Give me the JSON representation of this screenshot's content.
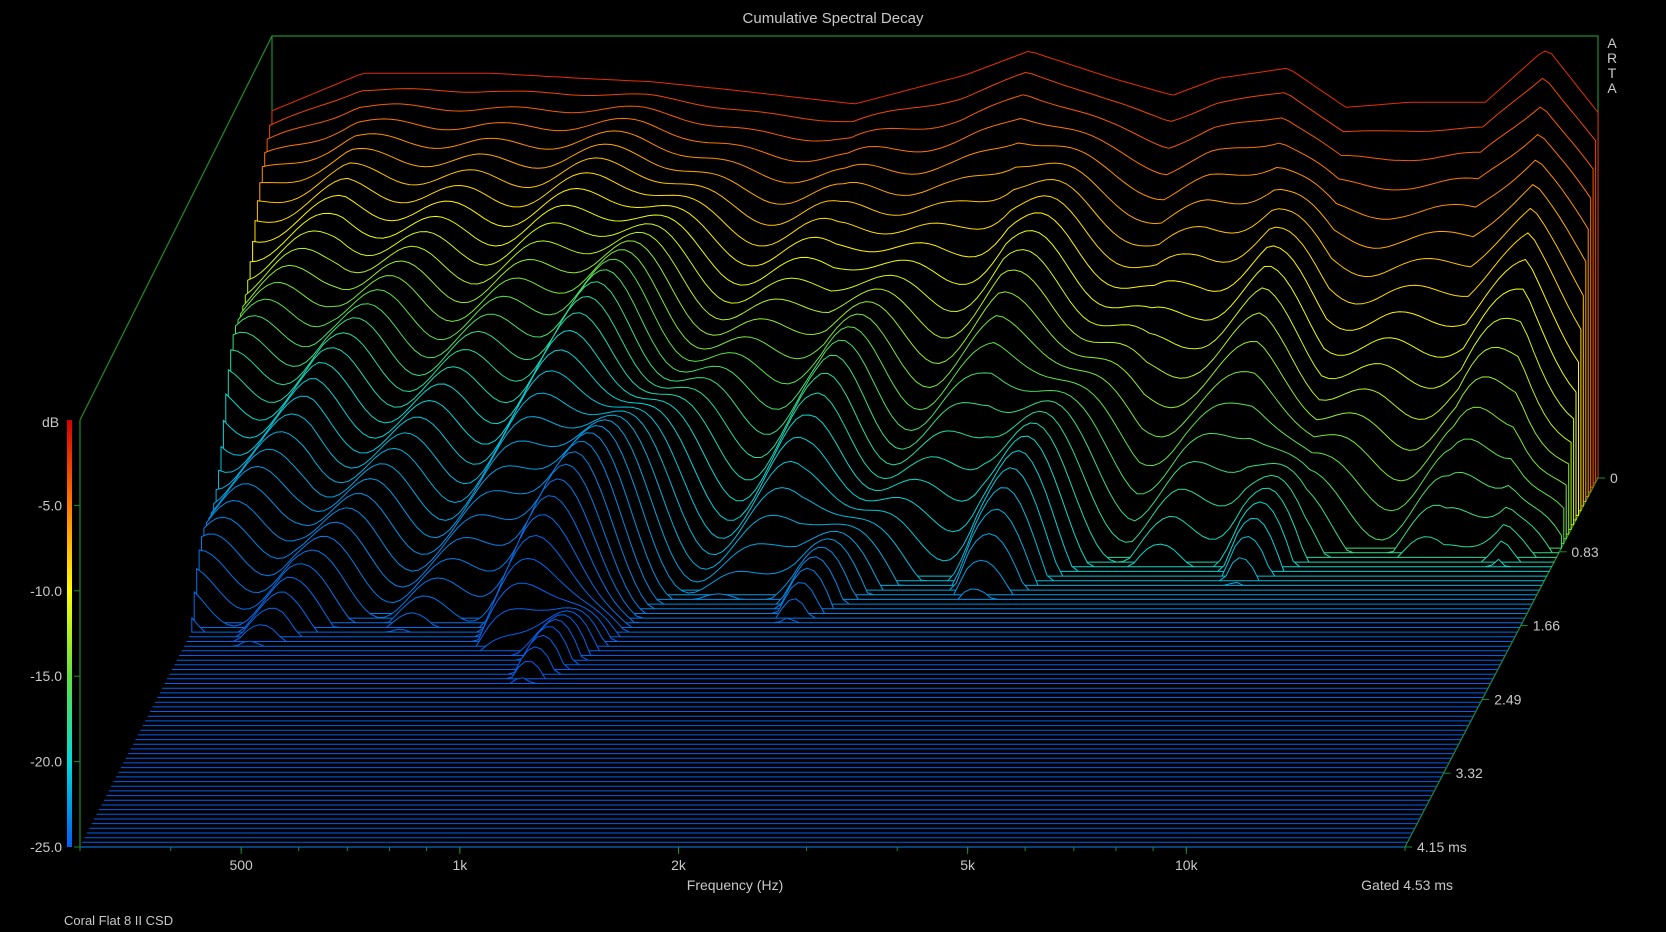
{
  "chart_data": {
    "type": "waterfall",
    "title": "Cumulative Spectral Decay",
    "xlabel": "Frequency (Hz)",
    "zlabel": "dB",
    "brand": "A R T A",
    "footer_left": "Coral Flat 8 II CSD",
    "footer_right": "Gated 4.53 ms",
    "x_ticks": [
      {
        "value": 500,
        "label": "500"
      },
      {
        "value": 1000,
        "label": "1k"
      },
      {
        "value": 2000,
        "label": "2k"
      },
      {
        "value": 5000,
        "label": "5k"
      },
      {
        "value": 10000,
        "label": "10k"
      }
    ],
    "x_range_hz": [
      300,
      20000
    ],
    "z_ticks": [
      {
        "value": -5,
        "label": "-5.0"
      },
      {
        "value": -10,
        "label": "-10.0"
      },
      {
        "value": -15,
        "label": "-15.0"
      },
      {
        "value": -20,
        "label": "-20.0"
      },
      {
        "value": -25,
        "label": "-25.0"
      }
    ],
    "z_range_db": [
      -25,
      0
    ],
    "time_ticks": [
      {
        "value": 0,
        "label": "0"
      },
      {
        "value": 0.83,
        "label": "0.83"
      },
      {
        "value": 1.66,
        "label": "1.66"
      },
      {
        "value": 2.49,
        "label": "2.49"
      },
      {
        "value": 3.32,
        "label": "3.32"
      },
      {
        "value": 4.15,
        "label": "4.15 ms"
      }
    ],
    "time_range_ms": [
      0,
      4.15
    ],
    "slice_count": 80,
    "initial_response_db": [
      {
        "hz": 300,
        "db": -3.5
      },
      {
        "hz": 400,
        "db": -1.3
      },
      {
        "hz": 600,
        "db": -1.3
      },
      {
        "hz": 800,
        "db": -1.6
      },
      {
        "hz": 1000,
        "db": -1.8
      },
      {
        "hz": 1300,
        "db": -2.3
      },
      {
        "hz": 1900,
        "db": -3.1
      },
      {
        "hz": 2700,
        "db": -1.4
      },
      {
        "hz": 3300,
        "db": 0.0
      },
      {
        "hz": 4300,
        "db": -1.6
      },
      {
        "hz": 5200,
        "db": -2.6
      },
      {
        "hz": 6000,
        "db": -1.6
      },
      {
        "hz": 7500,
        "db": -1.0
      },
      {
        "hz": 9000,
        "db": -3.3
      },
      {
        "hz": 11000,
        "db": -3.0
      },
      {
        "hz": 14000,
        "db": -3.0
      },
      {
        "hz": 17000,
        "db": 0.2
      },
      {
        "hz": 20000,
        "db": -3.6
      }
    ],
    "colors": {
      "background": "#000000",
      "frame": "#1e8c2c",
      "text": "#c8c8c8",
      "scale": [
        "#d40000",
        "#ff7a00",
        "#ffff00",
        "#60e040",
        "#00d8d8",
        "#0060f0"
      ]
    }
  }
}
